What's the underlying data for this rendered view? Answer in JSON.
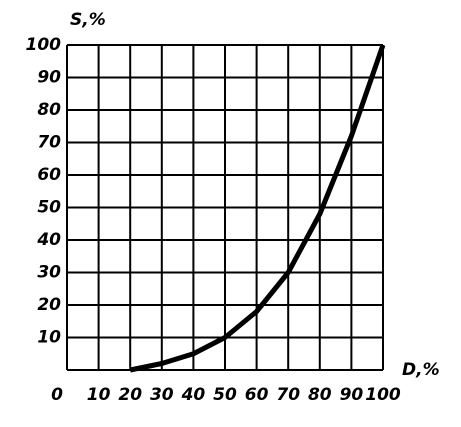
{
  "chart_data": {
    "type": "line",
    "y_label": "S,%",
    "x_label": "D,%",
    "x": [
      20,
      30,
      40,
      50,
      60,
      70,
      80,
      90,
      100
    ],
    "series": [
      {
        "color": "#000000",
        "values": [
          0,
          2,
          5,
          10,
          18,
          30,
          48,
          72,
          100
        ]
      }
    ],
    "xlim": [
      0,
      100
    ],
    "ylim": [
      0,
      100
    ],
    "xticks": [
      0,
      10,
      20,
      30,
      40,
      50,
      60,
      70,
      80,
      90,
      100
    ],
    "yticks": [
      10,
      20,
      30,
      40,
      50,
      60,
      70,
      80,
      90,
      100
    ],
    "grid": true
  }
}
